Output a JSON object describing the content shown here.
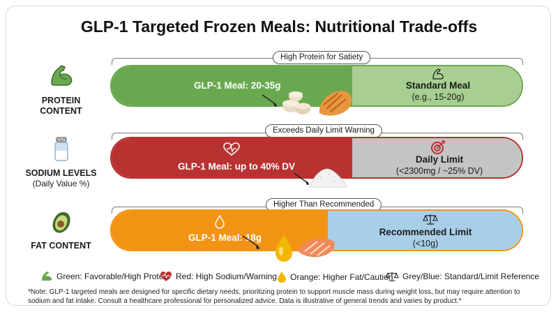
{
  "title": "GLP-1 Targeted Frozen Meals: Nutritional Trade-offs",
  "rows": [
    {
      "label": "PROTEIN CONTENT",
      "sublabel": "",
      "callout": "High Protein for Satiety",
      "left_text": "GLP-1 Meal: 20-35g",
      "right_title": "Standard Meal",
      "right_sub": "(e.g., 15-20g)",
      "left_color": "#6aa84f",
      "right_color": "#a8cf92",
      "border_color": "#6aa84f"
    },
    {
      "label": "SODIUM LEVELS",
      "sublabel": "(Daily Value %)",
      "callout": "Exceeds Daily Limit Warning",
      "left_text": "GLP-1 Meal: up to 40% DV",
      "right_title": "Daily Limit",
      "right_sub": "(<2300mg / ~25% DV)",
      "left_color": "#b83232",
      "right_color": "#c4c4c4",
      "border_color": "#b83232"
    },
    {
      "label": "FAT CONTENT",
      "sublabel": "",
      "callout": "Higher Than Recommended",
      "left_text": "GLP-1 Meal: 18g",
      "right_title": "Recommended Limit",
      "right_sub": "(<10g)",
      "left_color": "#f39314",
      "right_color": "#a9cfe8",
      "border_color": "#f39314"
    }
  ],
  "legend": [
    {
      "icon": "muscle-icon",
      "text": "Green: Favorable/High Protein"
    },
    {
      "icon": "heart-warning-icon",
      "text": "Red: High Sodium/Warning"
    },
    {
      "icon": "oil-drop-icon",
      "text": "Orange: Higher Fat/Caution"
    },
    {
      "icon": "scale-icon",
      "text": "Grey/Blue: Standard/Limit Reference"
    }
  ],
  "note": "*Note: GLP-1 targeted meals are designed for specific dietary needs, prioritizing protein to support muscle mass during weight loss, but may require attention to sodium and fat intake. Consult a healthcare professional for personalized advice. Data is illustrative of general trends and varies by product.*"
}
